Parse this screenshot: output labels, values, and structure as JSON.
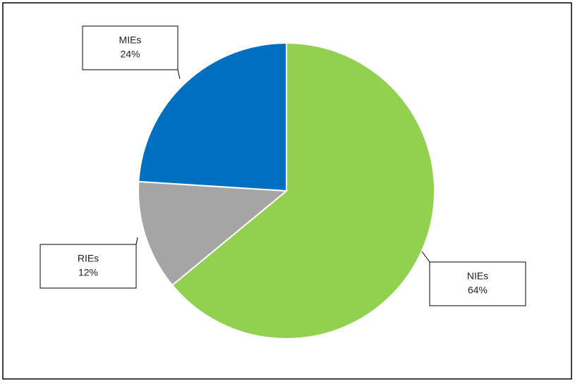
{
  "chart_data": {
    "type": "pie",
    "categories": [
      "NIEs",
      "RIEs",
      "MIEs"
    ],
    "values": [
      64,
      12,
      24
    ],
    "value_labels": [
      "64%",
      "12%",
      "24%"
    ],
    "colors": [
      "#92d050",
      "#a5a5a5",
      "#0070c0"
    ]
  }
}
